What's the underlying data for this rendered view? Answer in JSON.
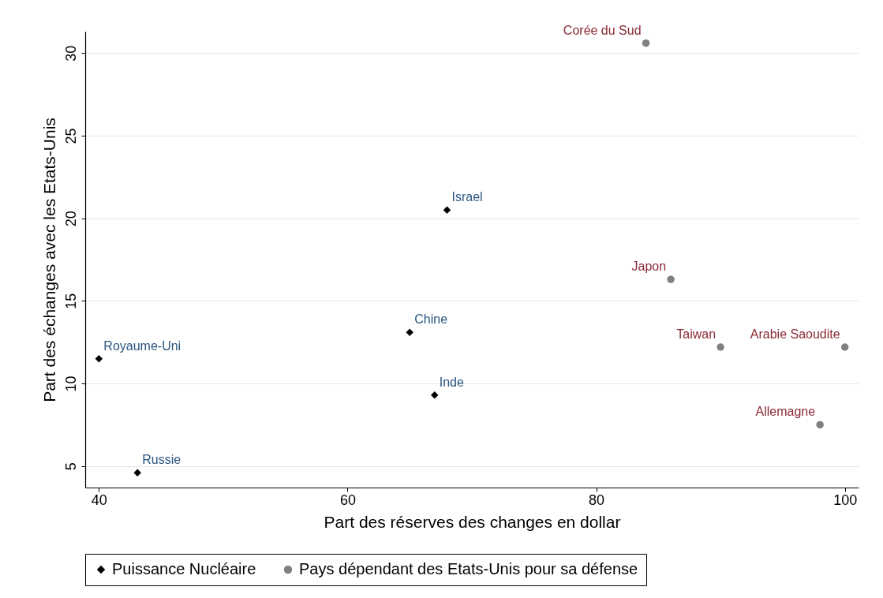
{
  "chart_data": {
    "type": "scatter",
    "xlabel": "Part des réserves des changes en dollar",
    "ylabel": "Part des échanges avec les Etats-Unis",
    "xlim": [
      38.9,
      101.1
    ],
    "xticks": [
      40,
      60,
      80,
      100
    ],
    "ylim": [
      3.7,
      31.3
    ],
    "yticks": [
      5,
      10,
      15,
      20,
      25,
      30
    ],
    "grid": "y",
    "legend": "bottom",
    "series": [
      {
        "name": "Puissance Nucléaire",
        "color": "#000000",
        "marker": "diamond",
        "x": [
          40,
          43.1,
          65,
          67,
          68
        ],
        "values": [
          11.5,
          4.6,
          13.1,
          9.3,
          20.5
        ]
      },
      {
        "name": "Pays dépendant des Etats-Unis pour sa défense",
        "color": "#808080",
        "marker": "circle",
        "x": [
          84,
          86,
          90,
          100,
          98
        ],
        "values": [
          30.6,
          16.3,
          12.2,
          12.2,
          7.5
        ]
      }
    ],
    "annotations": [
      {
        "text": "Royaume-Uni",
        "x": 40,
        "y": 11.5
      },
      {
        "text": "Russie",
        "x": 43.1,
        "y": 4.6
      },
      {
        "text": "Chine",
        "x": 65,
        "y": 13.1
      },
      {
        "text": "Inde",
        "x": 67,
        "y": 9.3
      },
      {
        "text": "Israel",
        "x": 68,
        "y": 20.5
      },
      {
        "text": "Corée du Sud",
        "x": 84,
        "y": 30.6
      },
      {
        "text": "Japon",
        "x": 86,
        "y": 16.3
      },
      {
        "text": "Taiwan",
        "x": 90,
        "y": 12.2
      },
      {
        "text": "Arabie Saoudite",
        "x": 100,
        "y": 12.2
      },
      {
        "text": "Allemagne",
        "x": 98,
        "y": 7.5
      }
    ]
  }
}
